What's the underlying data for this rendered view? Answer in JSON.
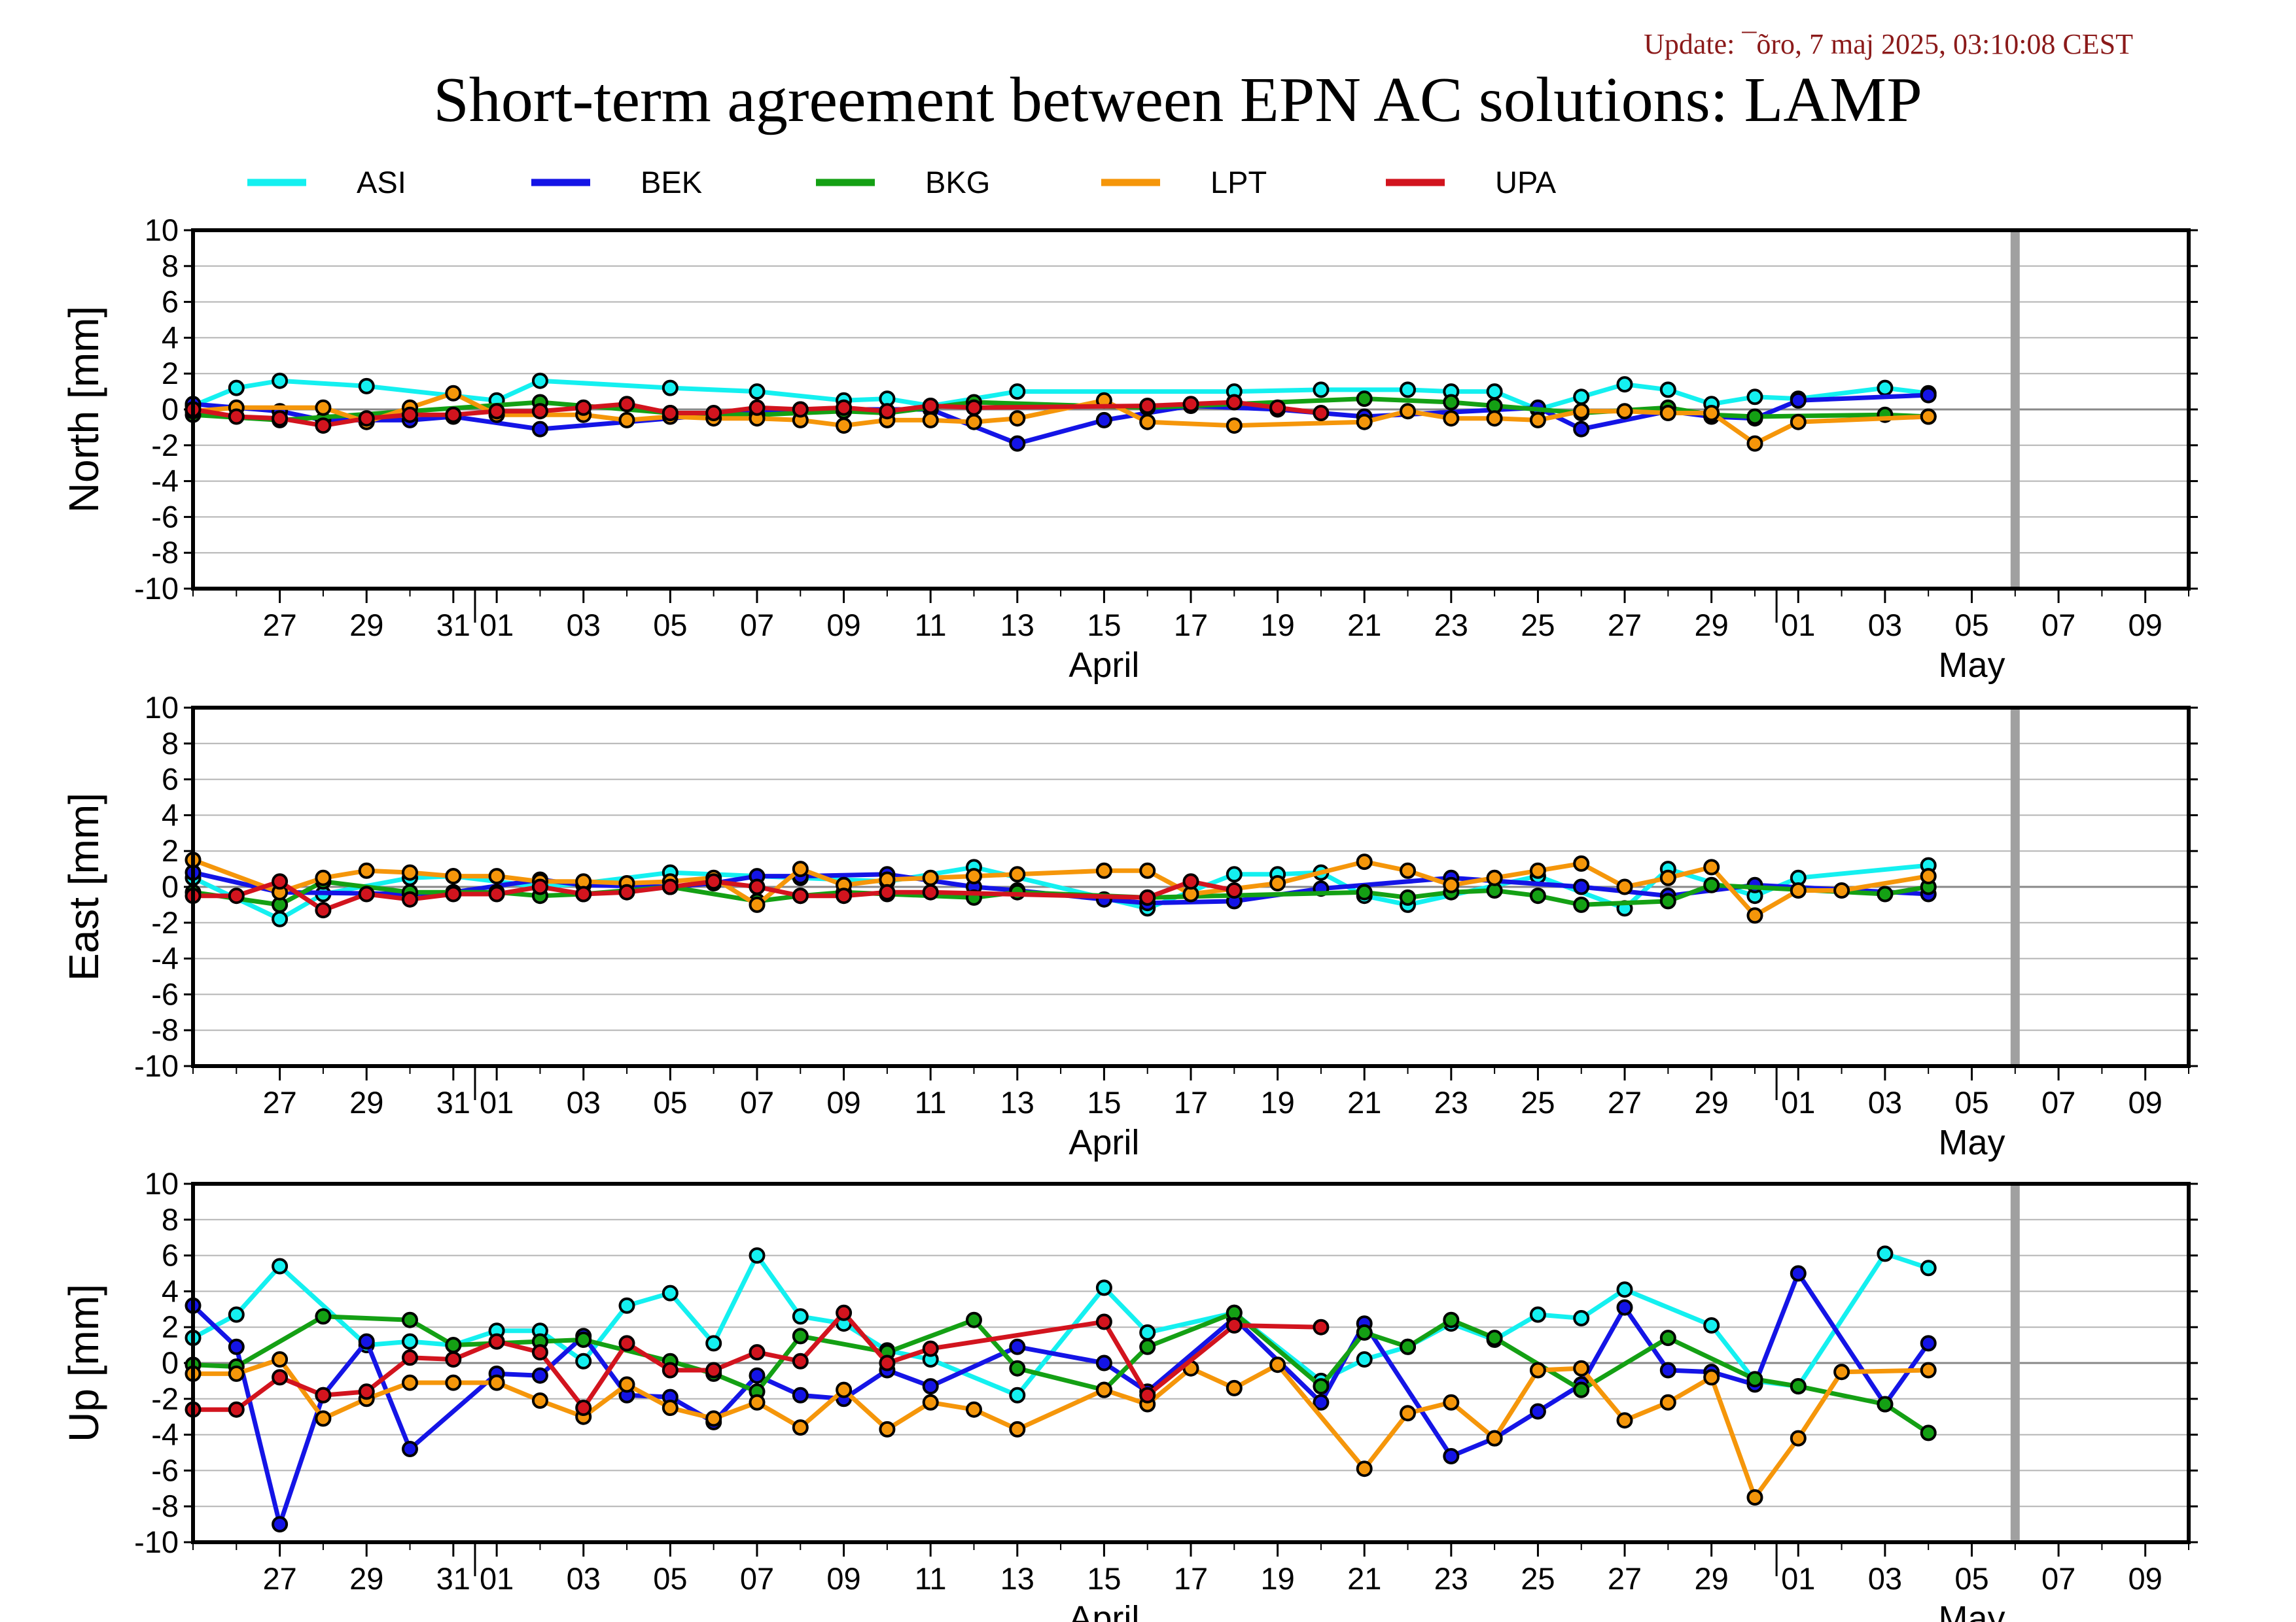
{
  "update_text": "Update: ¯õro, 7 maj 2025, 03:10:08 CEST",
  "title": "Short-term agreement between EPN AC solutions: LAMP",
  "colors": {
    "ASI": "#14f0f0",
    "BEK": "#1414e6",
    "BKG": "#14a014",
    "LPT": "#f5960a",
    "UPA": "#d2141e",
    "today": "#a0a0a0"
  },
  "chart_data": {
    "type": "line",
    "legend": [
      "ASI",
      "BEK",
      "BKG",
      "LPT",
      "UPA"
    ],
    "x_axis": {
      "start": "2025-03-25",
      "end": "2025-05-10",
      "today_marker": "2025-05-06",
      "tick_labels": [
        {
          "date": "2025-03-27",
          "label": "27"
        },
        {
          "date": "2025-03-29",
          "label": "29"
        },
        {
          "date": "2025-03-31",
          "label": "31"
        },
        {
          "date": "2025-04-01",
          "label": "01"
        },
        {
          "date": "2025-04-03",
          "label": "03"
        },
        {
          "date": "2025-04-05",
          "label": "05"
        },
        {
          "date": "2025-04-07",
          "label": "07"
        },
        {
          "date": "2025-04-09",
          "label": "09"
        },
        {
          "date": "2025-04-11",
          "label": "11"
        },
        {
          "date": "2025-04-13",
          "label": "13"
        },
        {
          "date": "2025-04-15",
          "label": "15"
        },
        {
          "date": "2025-04-17",
          "label": "17"
        },
        {
          "date": "2025-04-19",
          "label": "19"
        },
        {
          "date": "2025-04-21",
          "label": "21"
        },
        {
          "date": "2025-04-23",
          "label": "23"
        },
        {
          "date": "2025-04-25",
          "label": "25"
        },
        {
          "date": "2025-04-27",
          "label": "27"
        },
        {
          "date": "2025-04-29",
          "label": "29"
        },
        {
          "date": "2025-05-01",
          "label": "01"
        },
        {
          "date": "2025-05-03",
          "label": "03"
        },
        {
          "date": "2025-05-05",
          "label": "05"
        },
        {
          "date": "2025-05-07",
          "label": "07"
        },
        {
          "date": "2025-05-09",
          "label": "09"
        }
      ],
      "month_labels": [
        {
          "date": "2025-04-15",
          "label": "April"
        },
        {
          "date": "2025-05-05",
          "label": "May"
        }
      ],
      "month_boundaries": [
        "2025-04-01",
        "2025-05-01"
      ]
    },
    "dates": [
      "2025-03-25",
      "2025-03-26",
      "2025-03-27",
      "2025-03-28",
      "2025-03-29",
      "2025-03-30",
      "2025-03-31",
      "2025-04-01",
      "2025-04-02",
      "2025-04-03",
      "2025-04-04",
      "2025-04-05",
      "2025-04-06",
      "2025-04-07",
      "2025-04-08",
      "2025-04-09",
      "2025-04-10",
      "2025-04-11",
      "2025-04-12",
      "2025-04-13",
      "2025-04-14",
      "2025-04-15",
      "2025-04-16",
      "2025-04-17",
      "2025-04-18",
      "2025-04-19",
      "2025-04-20",
      "2025-04-21",
      "2025-04-22",
      "2025-04-23",
      "2025-04-24",
      "2025-04-25",
      "2025-04-26",
      "2025-04-27",
      "2025-04-28",
      "2025-04-29",
      "2025-04-30",
      "2025-05-01",
      "2025-05-02",
      "2025-05-03",
      "2025-05-04",
      "2025-05-05"
    ],
    "panels": [
      {
        "ylabel": "North [mm]",
        "ylim": [
          -10,
          10
        ],
        "yticks": [
          10,
          8,
          6,
          4,
          2,
          0,
          -2,
          -4,
          -6,
          -8,
          -10
        ],
        "series": [
          {
            "name": "ASI",
            "values": [
              0.2,
              1.2,
              1.6,
              null,
              1.3,
              null,
              null,
              0.5,
              1.6,
              null,
              null,
              1.2,
              null,
              1.0,
              null,
              0.5,
              0.6,
              0.2,
              null,
              1.0,
              null,
              null,
              null,
              null,
              1.0,
              null,
              1.1,
              null,
              1.1,
              1.0,
              1.0,
              0.0,
              0.7,
              1.4,
              1.1,
              0.3,
              0.7,
              0.6,
              null,
              1.2,
              0.9,
              null
            ]
          },
          {
            "name": "BEK",
            "values": [
              0.3,
              null,
              -0.1,
              -0.6,
              null,
              -0.6,
              -0.4,
              null,
              -1.1,
              null,
              null,
              null,
              -0.3,
              null,
              0.0,
              0.0,
              null,
              0.0,
              null,
              -1.9,
              null,
              -0.6,
              null,
              0.2,
              null,
              0.0,
              null,
              -0.4,
              null,
              null,
              null,
              0.1,
              -1.1,
              null,
              -0.1,
              -0.4,
              -0.5,
              0.5,
              null,
              null,
              0.8,
              null
            ]
          },
          {
            "name": "BKG",
            "values": [
              -0.3,
              null,
              -0.6,
              null,
              null,
              null,
              null,
              null,
              0.4,
              null,
              null,
              -0.2,
              null,
              -0.3,
              null,
              -0.1,
              -0.2,
              null,
              0.4,
              null,
              null,
              null,
              0.1,
              null,
              null,
              null,
              null,
              0.6,
              null,
              0.4,
              0.2,
              null,
              -0.2,
              null,
              0.1,
              -0.3,
              -0.4,
              null,
              null,
              -0.3,
              -0.4,
              null
            ]
          },
          {
            "name": "LPT",
            "values": [
              -0.1,
              0.1,
              null,
              0.1,
              -0.7,
              0.1,
              0.9,
              -0.3,
              null,
              -0.3,
              -0.6,
              -0.4,
              -0.5,
              -0.5,
              -0.6,
              -0.9,
              -0.6,
              -0.6,
              -0.7,
              -0.5,
              null,
              0.5,
              -0.7,
              null,
              -0.9,
              null,
              null,
              -0.7,
              -0.1,
              -0.5,
              -0.5,
              -0.6,
              -0.1,
              -0.1,
              -0.2,
              -0.2,
              -1.9,
              -0.7,
              null,
              null,
              -0.4,
              null
            ]
          },
          {
            "name": "UPA",
            "values": [
              0.0,
              -0.4,
              -0.5,
              -0.9,
              -0.5,
              -0.3,
              -0.3,
              -0.1,
              -0.1,
              0.1,
              0.3,
              -0.2,
              -0.2,
              0.1,
              0.0,
              0.1,
              -0.1,
              0.2,
              0.1,
              null,
              null,
              null,
              0.2,
              0.3,
              0.4,
              0.1,
              -0.2,
              null,
              null,
              null,
              null,
              null,
              null,
              null,
              null,
              null,
              null,
              null,
              null,
              null,
              null,
              null
            ]
          }
        ]
      },
      {
        "ylabel": "East [mm]",
        "ylim": [
          -10,
          10
        ],
        "yticks": [
          10,
          8,
          6,
          4,
          2,
          0,
          -2,
          -4,
          -6,
          -8,
          -10
        ],
        "series": [
          {
            "name": "ASI",
            "values": [
              0.5,
              null,
              -1.8,
              -0.4,
              null,
              0.5,
              0.6,
              null,
              0.0,
              0.2,
              null,
              0.8,
              null,
              null,
              0.5,
              null,
              0.3,
              null,
              1.1,
              null,
              null,
              null,
              -1.2,
              null,
              0.7,
              0.7,
              0.8,
              -0.5,
              -1.0,
              null,
              null,
              0.6,
              null,
              -1.2,
              1.0,
              null,
              -0.5,
              0.5,
              null,
              null,
              1.2,
              null
            ]
          },
          {
            "name": "BEK",
            "values": [
              0.8,
              null,
              -0.3,
              null,
              null,
              -0.4,
              -0.3,
              null,
              0.4,
              0.1,
              null,
              0.0,
              0.2,
              0.6,
              0.6,
              null,
              0.7,
              null,
              0.0,
              -0.2,
              null,
              -0.7,
              -0.9,
              null,
              -0.8,
              null,
              -0.1,
              null,
              null,
              0.5,
              null,
              null,
              0.0,
              null,
              -0.5,
              null,
              0.1,
              null,
              null,
              null,
              -0.4,
              null
            ]
          },
          {
            "name": "BKG",
            "values": [
              -0.3,
              null,
              -1.0,
              0.3,
              null,
              -0.3,
              null,
              -0.3,
              -0.5,
              -0.4,
              null,
              0.0,
              null,
              -0.8,
              -0.5,
              -0.3,
              -0.4,
              null,
              -0.6,
              -0.3,
              null,
              null,
              -0.6,
              null,
              null,
              null,
              null,
              -0.3,
              -0.6,
              -0.3,
              -0.2,
              -0.5,
              -1.0,
              null,
              -0.8,
              0.1,
              null,
              null,
              null,
              -0.4,
              0.0,
              null
            ]
          },
          {
            "name": "LPT",
            "values": [
              1.5,
              null,
              -0.3,
              0.5,
              0.9,
              0.8,
              0.6,
              0.6,
              0.3,
              0.3,
              0.2,
              0.3,
              0.5,
              -1.0,
              1.0,
              0.1,
              0.4,
              0.5,
              0.6,
              0.7,
              null,
              0.9,
              0.9,
              -0.4,
              null,
              0.2,
              null,
              1.4,
              0.9,
              0.1,
              0.5,
              0.9,
              1.3,
              0.0,
              0.5,
              1.1,
              -1.6,
              -0.2,
              -0.2,
              null,
              0.6,
              null
            ]
          },
          {
            "name": "UPA",
            "values": [
              -0.5,
              -0.5,
              0.3,
              -1.3,
              -0.4,
              -0.7,
              -0.4,
              -0.4,
              0.0,
              -0.4,
              -0.3,
              0.0,
              0.3,
              0.0,
              -0.5,
              -0.5,
              -0.3,
              -0.3,
              null,
              null,
              null,
              null,
              -0.6,
              0.3,
              -0.2,
              null,
              null,
              null,
              null,
              null,
              null,
              null,
              null,
              null,
              null,
              null,
              null,
              null,
              null,
              null,
              null,
              null
            ]
          }
        ]
      },
      {
        "ylabel": "Up [mm]",
        "ylim": [
          -10,
          10
        ],
        "yticks": [
          10,
          8,
          6,
          4,
          2,
          0,
          -2,
          -4,
          -6,
          -8,
          -10
        ],
        "series": [
          {
            "name": "ASI",
            "values": [
              1.4,
              2.7,
              5.4,
              null,
              1.0,
              1.2,
              1.0,
              1.8,
              1.8,
              0.1,
              3.2,
              3.9,
              1.1,
              6.0,
              2.6,
              2.2,
              0.7,
              0.2,
              null,
              -1.8,
              null,
              4.2,
              1.7,
              null,
              2.8,
              null,
              -1.0,
              0.2,
              0.9,
              2.2,
              1.3,
              2.7,
              2.5,
              4.1,
              null,
              2.1,
              -1.0,
              -1.3,
              null,
              6.1,
              5.3,
              null
            ]
          },
          {
            "name": "BEK",
            "values": [
              3.2,
              0.9,
              -9.0,
              -1.8,
              1.2,
              -4.8,
              null,
              -0.6,
              -0.7,
              1.5,
              -1.8,
              -1.9,
              -3.3,
              -0.7,
              -1.8,
              -2.0,
              -0.4,
              -1.3,
              null,
              0.9,
              null,
              0.0,
              -1.6,
              null,
              2.5,
              null,
              -2.2,
              2.2,
              null,
              -5.2,
              -4.2,
              -2.7,
              -1.2,
              3.1,
              -0.4,
              -0.5,
              -1.2,
              5.0,
              null,
              -2.3,
              1.1,
              null
            ]
          },
          {
            "name": "BKG",
            "values": [
              -0.1,
              -0.2,
              null,
              2.6,
              null,
              2.4,
              1.0,
              null,
              1.2,
              1.3,
              null,
              0.1,
              -0.6,
              -1.6,
              1.5,
              null,
              0.6,
              null,
              2.4,
              -0.3,
              null,
              -1.5,
              0.9,
              null,
              2.8,
              null,
              -1.3,
              1.7,
              0.9,
              2.4,
              1.4,
              null,
              -1.5,
              null,
              1.4,
              null,
              -0.9,
              -1.3,
              null,
              -2.3,
              -3.9,
              null
            ]
          },
          {
            "name": "LPT",
            "values": [
              -0.6,
              -0.6,
              0.2,
              -3.1,
              -2.0,
              -1.1,
              -1.1,
              -1.1,
              -2.1,
              -3.0,
              -1.2,
              -2.5,
              -3.1,
              -2.2,
              -3.6,
              -1.5,
              -3.7,
              -2.2,
              -2.6,
              -3.7,
              null,
              -1.5,
              -2.3,
              -0.3,
              -1.4,
              -0.1,
              null,
              -5.9,
              -2.8,
              -2.2,
              -4.2,
              -0.4,
              -0.3,
              -3.2,
              -2.2,
              -0.8,
              -7.5,
              -4.2,
              -0.5,
              null,
              -0.4,
              null
            ]
          },
          {
            "name": "UPA",
            "values": [
              -2.6,
              -2.6,
              -0.8,
              -1.8,
              -1.6,
              0.3,
              0.2,
              1.2,
              0.6,
              -2.5,
              1.1,
              -0.4,
              -0.4,
              0.6,
              0.1,
              2.8,
              0.0,
              0.8,
              null,
              null,
              null,
              2.3,
              -1.8,
              null,
              2.1,
              null,
              2.0,
              null,
              null,
              null,
              null,
              null,
              null,
              null,
              null,
              null,
              null,
              null,
              null,
              null,
              null,
              null
            ]
          }
        ]
      }
    ]
  }
}
